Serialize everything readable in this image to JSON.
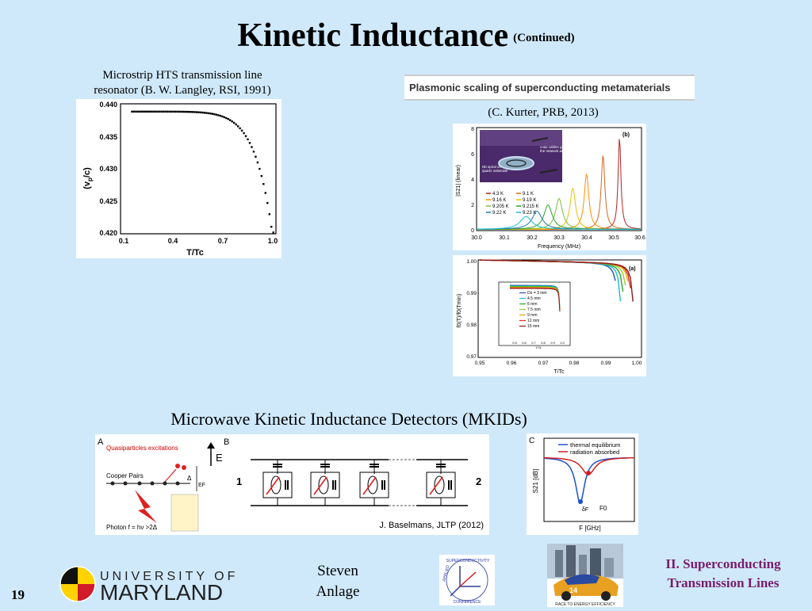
{
  "slide": {
    "title": "Kinetic Inductance",
    "title_suffix": "(Continued)",
    "page_number": "19"
  },
  "langley": {
    "caption_line1": "Microstrip HTS transmission line",
    "caption_line2": "resonator (B. W. Langley, RSI, 1991)",
    "ylabel": "(v",
    "ylabel_sub": "p",
    "ylabel_end": "/c)",
    "xlabel": "T/Tc",
    "yticks": [
      "0.440",
      "0.435",
      "0.430",
      "0.425",
      "0.420"
    ],
    "xticks": [
      "0.1",
      "0.4",
      "0.7",
      "1.0"
    ]
  },
  "kurter": {
    "banner": "Plasmonic scaling of superconducting metamaterials",
    "citation": "(C. Kurter, PRB, 2013)",
    "top": {
      "panel_label": "(b)",
      "ylabel": "|S21| (linear)",
      "xlabel": "Frequency (MHz)",
      "yticks": [
        "8",
        "6",
        "4",
        "2",
        "0"
      ],
      "xticks": [
        "30.0",
        "30.1",
        "30.2",
        "30.3",
        "30.4",
        "30.5",
        "30.6"
      ],
      "inset_label1": "coax cables going to",
      "inset_label2": "the network analyzer",
      "inset_label3": "Nb spiral on",
      "inset_label4": "quartz substrate",
      "legend": [
        "4.3 K",
        "9.1 K",
        "9.16 K",
        "9.19 K",
        "9.205 K",
        "9.215 K",
        "9.22 K",
        "9.23 K"
      ],
      "legend_colors": [
        "#b22222",
        "#d2691e",
        "#ff8c00",
        "#e6c200",
        "#7cbd3a",
        "#2ca02c",
        "#1f77b4",
        "#17becf"
      ]
    },
    "bottom": {
      "panel_label": "(a)",
      "ylabel": "f0(T)/f0(Tmin)",
      "xlabel": "T/Tc",
      "yticks": [
        "1.00",
        "0.99",
        "0.98",
        "0.97"
      ],
      "xticks": [
        "0.95",
        "0.96",
        "0.97",
        "0.98",
        "0.99",
        "1.00"
      ],
      "inset_legend": [
        "Do = 3 mm",
        "4.5 mm",
        "6 mm",
        "7.5 mm",
        "9 mm",
        "12 mm",
        "15 mm"
      ],
      "inset_colors": [
        "#1f4fb4",
        "#17becf",
        "#2ca02c",
        "#9acd32",
        "#e6a800",
        "#e03020",
        "#8b1a1a"
      ],
      "inset_xticks": [
        "0.5",
        "0.6",
        "0.7",
        "0.8",
        "0.9",
        "1.0"
      ],
      "inset_xlabel": "T/Tc"
    }
  },
  "mkid": {
    "heading": "Microwave Kinetic Inductance Detectors (MKIDs)",
    "panelA": {
      "label": "A",
      "quasiparticles": "Quasiparticles excitations",
      "cooper": "Cooper Pairs",
      "photon": "Photon f = hν >2Δ",
      "delta": "Δ",
      "ef": "EF",
      "b_label": "B",
      "e_axis": "E",
      "port1": "1",
      "port2": "2"
    },
    "citation": "J. Baselmans, JLTP (2012)",
    "panelC": {
      "label": "C",
      "legend1": "thermal equilibrium",
      "legend2": "radiation absorbed",
      "ylabel": "S21 [dB]",
      "xlabel": "F [GHz]",
      "f0": "F0",
      "df": "δF"
    }
  },
  "footer": {
    "university_top": "UNIVERSITY OF",
    "university_bottom": "MARYLAND",
    "author_line1": "Steven",
    "author_line2": "Anlage",
    "asc_top": "SUPERCONDUCTIVITY",
    "asc_left": "APPLIED",
    "asc_bottom": "CONFERENCE",
    "race_caption": "RACE TO ENERGY EFFICIENCY",
    "section_line1": "II. Superconducting",
    "section_line2": "Transmission Lines"
  }
}
